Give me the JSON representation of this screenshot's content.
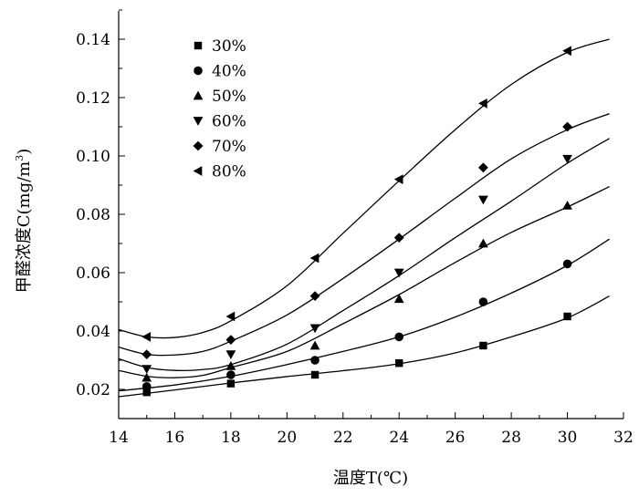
{
  "chart_data": {
    "type": "line",
    "title": "",
    "xlabel": "温度T(℃)",
    "ylabel_main": "甲醛浓度C(mg/m",
    "ylabel_sup": "3",
    "ylabel_close": ")",
    "xlim": [
      14,
      32
    ],
    "ylim": [
      0.01,
      0.15
    ],
    "xticks": [
      14,
      16,
      18,
      20,
      22,
      24,
      26,
      28,
      30,
      32
    ],
    "xtick_labels": [
      "14",
      "16",
      "18",
      "20",
      "22",
      "24",
      "26",
      "28",
      "30",
      "32"
    ],
    "yticks": [
      0.02,
      0.04,
      0.06,
      0.08,
      0.1,
      0.12,
      0.14
    ],
    "ytick_labels": [
      "0.02",
      "0.04",
      "0.06",
      "0.08",
      "0.10",
      "0.12",
      "0.14"
    ],
    "legend_position": "top-left",
    "grid": false,
    "series": [
      {
        "name": "30%",
        "marker": "square",
        "x": [
          15,
          18,
          21,
          24,
          27,
          30
        ],
        "values": [
          0.019,
          0.022,
          0.025,
          0.029,
          0.035,
          0.045
        ],
        "curve": [
          [
            14,
            0.0175
          ],
          [
            16,
            0.0198
          ],
          [
            18,
            0.0222
          ],
          [
            20,
            0.0244
          ],
          [
            22,
            0.0264
          ],
          [
            24,
            0.0288
          ],
          [
            26,
            0.0325
          ],
          [
            28,
            0.038
          ],
          [
            30,
            0.0445
          ],
          [
            31.5,
            0.052
          ]
        ]
      },
      {
        "name": "40%",
        "marker": "circle",
        "x": [
          15,
          18,
          21,
          24,
          27,
          30
        ],
        "values": [
          0.021,
          0.025,
          0.03,
          0.038,
          0.05,
          0.063
        ],
        "curve": [
          [
            14,
            0.0195
          ],
          [
            16,
            0.0215
          ],
          [
            18,
            0.0245
          ],
          [
            20,
            0.0285
          ],
          [
            22,
            0.033
          ],
          [
            24,
            0.038
          ],
          [
            26,
            0.0448
          ],
          [
            28,
            0.053
          ],
          [
            30,
            0.0625
          ],
          [
            31.5,
            0.0715
          ]
        ]
      },
      {
        "name": "50%",
        "marker": "triangle-up",
        "x": [
          15,
          18,
          21,
          24,
          27,
          30
        ],
        "values": [
          0.024,
          0.028,
          0.035,
          0.051,
          0.07,
          0.083
        ],
        "curve": [
          [
            14,
            0.0265
          ],
          [
            15,
            0.0245
          ],
          [
            16,
            0.024
          ],
          [
            17,
            0.0248
          ],
          [
            18,
            0.0275
          ],
          [
            20,
            0.033
          ],
          [
            22,
            0.0425
          ],
          [
            24,
            0.0525
          ],
          [
            26,
            0.0635
          ],
          [
            28,
            0.0738
          ],
          [
            30,
            0.0825
          ],
          [
            31.5,
            0.0895
          ]
        ]
      },
      {
        "name": "60%",
        "marker": "triangle-down",
        "x": [
          15,
          18,
          21,
          24,
          27,
          30
        ],
        "values": [
          0.027,
          0.032,
          0.041,
          0.06,
          0.085,
          0.099
        ],
        "curve": [
          [
            14,
            0.0305
          ],
          [
            15,
            0.0275
          ],
          [
            16,
            0.0265
          ],
          [
            17,
            0.0268
          ],
          [
            18,
            0.0285
          ],
          [
            20,
            0.0355
          ],
          [
            22,
            0.047
          ],
          [
            24,
            0.059
          ],
          [
            26,
            0.072
          ],
          [
            28,
            0.0845
          ],
          [
            30,
            0.0975
          ],
          [
            31.5,
            0.106
          ]
        ]
      },
      {
        "name": "70%",
        "marker": "diamond",
        "x": [
          15,
          18,
          21,
          24,
          27,
          30
        ],
        "values": [
          0.032,
          0.037,
          0.052,
          0.072,
          0.096,
          0.11
        ],
        "curve": [
          [
            14,
            0.0345
          ],
          [
            15,
            0.032
          ],
          [
            16,
            0.0318
          ],
          [
            17,
            0.033
          ],
          [
            18,
            0.0365
          ],
          [
            20,
            0.0455
          ],
          [
            22,
            0.058
          ],
          [
            24,
            0.0715
          ],
          [
            26,
            0.0855
          ],
          [
            28,
            0.099
          ],
          [
            30,
            0.109
          ],
          [
            31.5,
            0.1145
          ]
        ]
      },
      {
        "name": "80%",
        "marker": "triangle-left",
        "x": [
          15,
          18,
          21,
          24,
          27,
          30
        ],
        "values": [
          0.038,
          0.045,
          0.065,
          0.092,
          0.118,
          0.136
        ],
        "curve": [
          [
            14,
            0.0405
          ],
          [
            15,
            0.038
          ],
          [
            16,
            0.0378
          ],
          [
            17,
            0.0395
          ],
          [
            18,
            0.0435
          ],
          [
            20,
            0.0555
          ],
          [
            22,
            0.0735
          ],
          [
            24,
            0.0915
          ],
          [
            26,
            0.109
          ],
          [
            28,
            0.1245
          ],
          [
            30,
            0.1355
          ],
          [
            31.5,
            0.14
          ]
        ]
      }
    ]
  }
}
